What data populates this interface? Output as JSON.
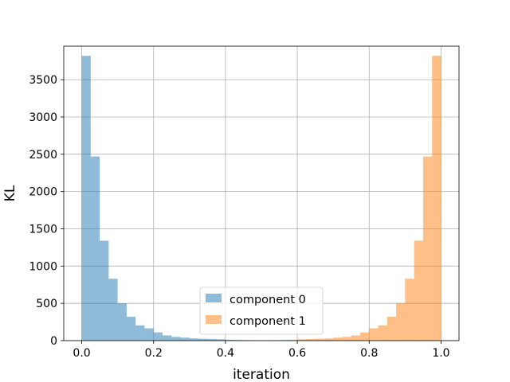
{
  "chart_data": {
    "type": "histogram",
    "title": "",
    "xlabel": "iteration",
    "ylabel": "KL",
    "xlim": [
      -0.05,
      1.05
    ],
    "ylim": [
      0,
      3950
    ],
    "xticks": [
      0.0,
      0.2,
      0.4,
      0.6,
      0.8,
      1.0
    ],
    "xtick_labels": [
      "0.0",
      "0.2",
      "0.4",
      "0.6",
      "0.8",
      "1.0"
    ],
    "yticks": [
      0,
      500,
      1000,
      1500,
      2000,
      2500,
      3000,
      3500
    ],
    "ytick_labels": [
      "0",
      "500",
      "1000",
      "1500",
      "2000",
      "2500",
      "3000",
      "3500"
    ],
    "grid": true,
    "legend_position": "bottom-center",
    "bin_width": 0.025,
    "series": [
      {
        "name": "component 0",
        "color": "#1f77b4",
        "alpha": 0.5,
        "bin_start": 0.0,
        "values": [
          3820,
          2470,
          1340,
          830,
          500,
          320,
          205,
          165,
          110,
          70,
          50,
          40,
          30,
          25,
          22,
          18,
          10,
          8,
          5,
          3,
          2,
          1,
          1,
          0,
          0,
          0,
          0,
          0,
          0,
          0,
          0,
          0,
          0,
          0,
          0,
          0,
          0,
          0,
          0,
          0
        ]
      },
      {
        "name": "component 1",
        "color": "#ff7f0e",
        "alpha": 0.5,
        "bin_start": 0.0,
        "values": [
          0,
          0,
          0,
          0,
          0,
          0,
          0,
          0,
          0,
          0,
          0,
          0,
          0,
          0,
          0,
          0,
          0,
          1,
          1,
          2,
          3,
          5,
          8,
          10,
          18,
          22,
          25,
          30,
          40,
          50,
          70,
          110,
          165,
          205,
          320,
          500,
          830,
          1340,
          2470,
          3820
        ]
      }
    ]
  }
}
